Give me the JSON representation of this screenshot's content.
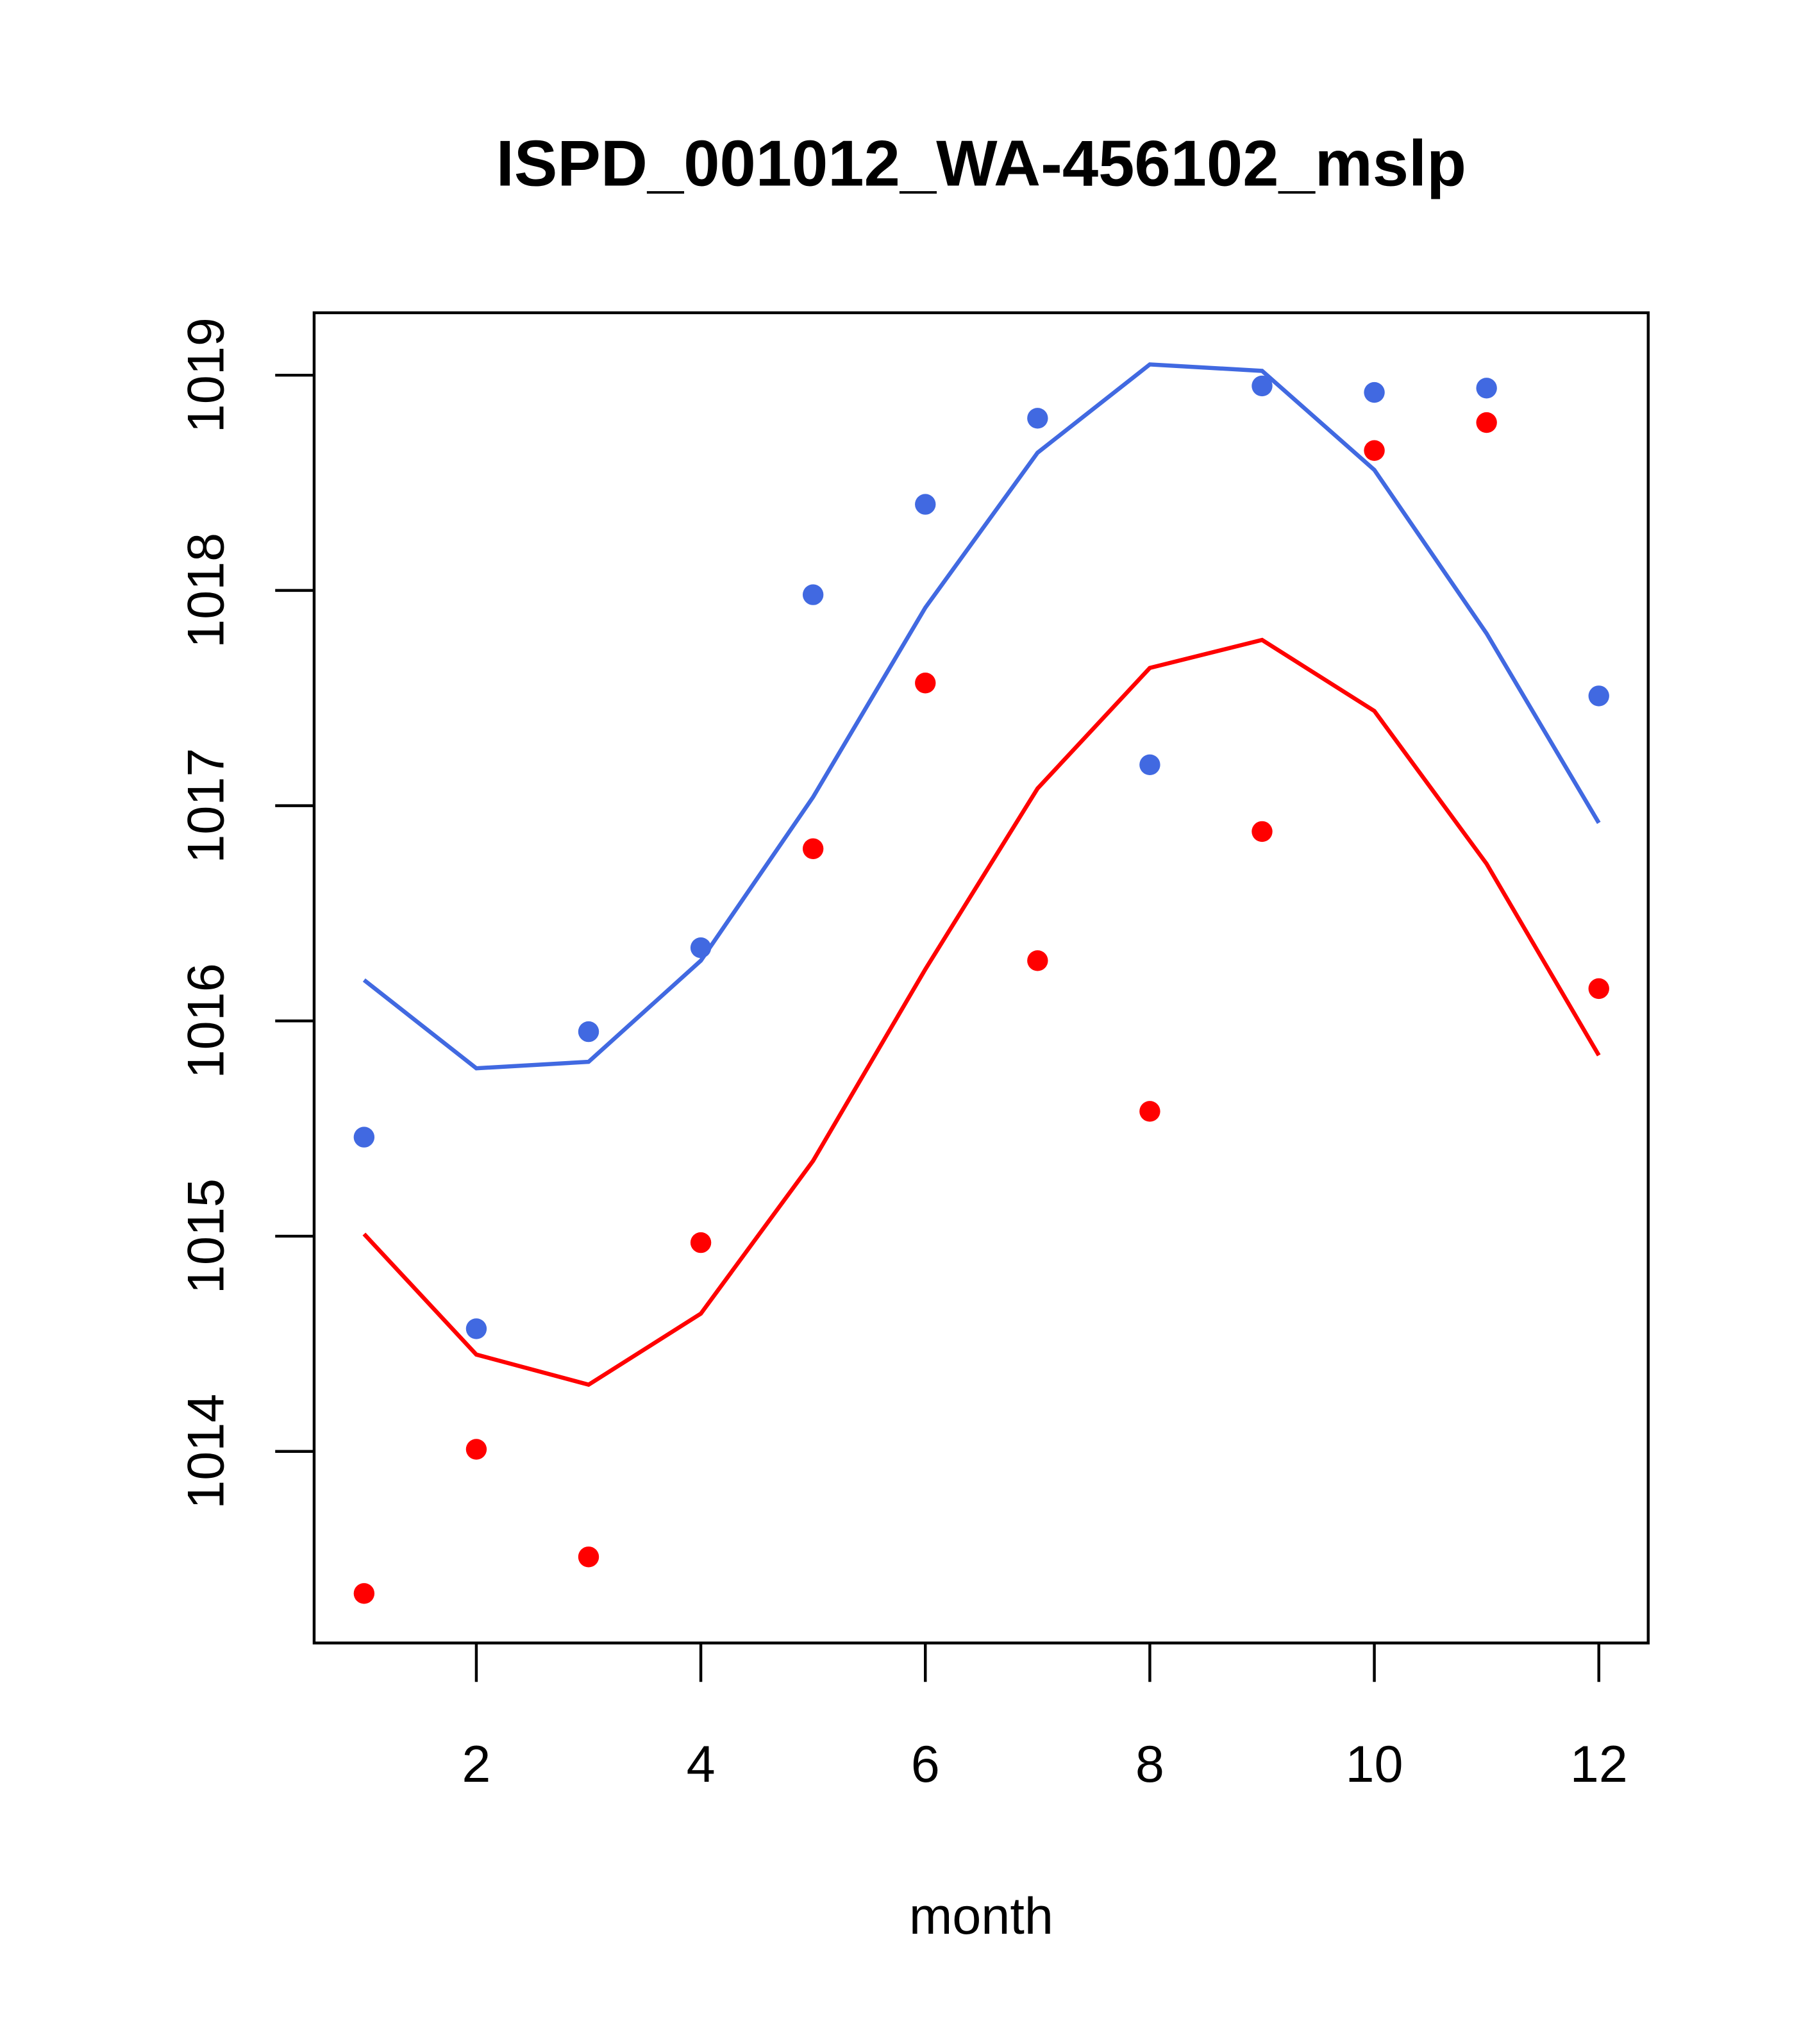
{
  "chart_data": {
    "type": "line",
    "title": "ISPD_001012_WA-456102_mslp",
    "xlabel": "month",
    "ylabel": "",
    "xlim": [
      0.555,
      12.44
    ],
    "ylim": [
      1013.11,
      1019.29
    ],
    "xticks": [
      2,
      4,
      6,
      8,
      10,
      12
    ],
    "xtick_labels": [
      "2",
      "4",
      "6",
      "8",
      "10",
      "12"
    ],
    "yticks": [
      1014,
      1015,
      1016,
      1017,
      1018,
      1019
    ],
    "ytick_labels": [
      "1014",
      "1015",
      "1016",
      "1017",
      "1018",
      "1019"
    ],
    "grid": false,
    "x": [
      1,
      2,
      3,
      4,
      5,
      6,
      7,
      8,
      9,
      10,
      11,
      12
    ],
    "series": [
      {
        "name": "blue points",
        "kind": "points",
        "color": "#4169E1",
        "values": [
          1015.46,
          1014.57,
          1015.95,
          1016.34,
          1017.98,
          1018.4,
          1018.8,
          1017.19,
          1018.95,
          1018.92,
          1018.94,
          1017.51
        ]
      },
      {
        "name": "blue line",
        "kind": "line",
        "color": "#4169E1",
        "values": [
          1016.19,
          1015.78,
          1015.81,
          1016.28,
          1017.04,
          1017.92,
          1018.64,
          1019.05,
          1019.02,
          1018.56,
          1017.8,
          1016.92
        ]
      },
      {
        "name": "red points",
        "kind": "points",
        "color": "#FF0000",
        "values": [
          1013.34,
          1014.01,
          1013.51,
          1014.97,
          1016.8,
          1017.57,
          1016.28,
          1015.58,
          1016.88,
          1018.65,
          1018.78,
          1016.15
        ]
      },
      {
        "name": "red line",
        "kind": "line",
        "color": "#FF0000",
        "values": [
          1015.01,
          1014.45,
          1014.31,
          1014.64,
          1015.35,
          1016.24,
          1017.08,
          1017.64,
          1017.77,
          1017.44,
          1016.73,
          1015.84
        ]
      }
    ]
  }
}
